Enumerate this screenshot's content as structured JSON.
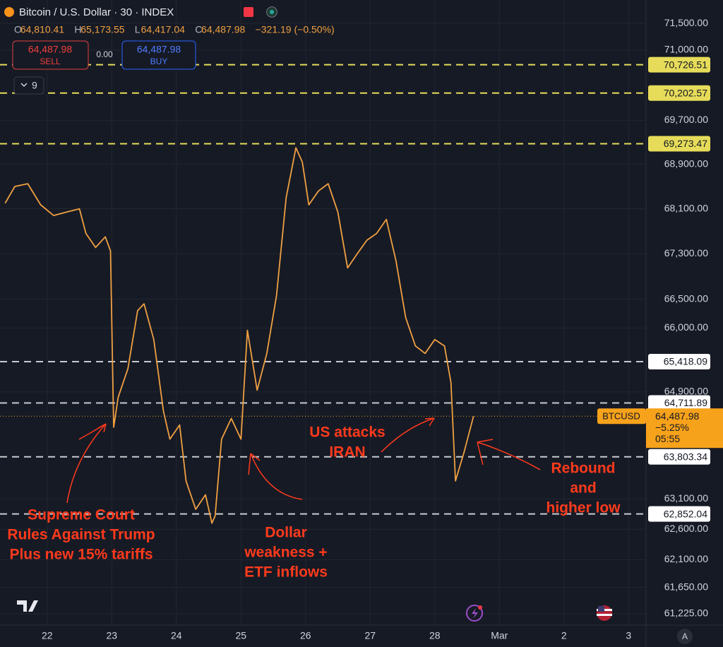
{
  "chart_data": {
    "type": "line",
    "title": "Bitcoin / U.S. Dollar · 30 · INDEX",
    "ohlc": [
      {
        "key": "O",
        "value": "64,810.41"
      },
      {
        "key": "H",
        "value": "65,173.55"
      },
      {
        "key": "L",
        "value": "64,417.04"
      },
      {
        "key": "C",
        "value": "64,487.98"
      }
    ],
    "change": "−321.19 (−0.50%)",
    "trade": {
      "sell_price": "64,487.98",
      "sell": "SELL",
      "spread": "0.00",
      "buy_price": "64,487.98",
      "buy": "BUY"
    },
    "indicators": "9",
    "x": [
      21.35,
      21.5,
      21.7,
      21.9,
      22.1,
      22.3,
      22.5,
      22.6,
      22.75,
      22.9,
      22.98,
      23.03,
      23.1,
      23.25,
      23.4,
      23.5,
      23.65,
      23.8,
      23.9,
      24.05,
      24.15,
      24.3,
      24.45,
      24.55,
      24.6,
      24.7,
      24.85,
      25.0,
      25.1,
      25.25,
      25.4,
      25.55,
      25.7,
      25.85,
      25.95,
      26.05,
      26.2,
      26.35,
      26.5,
      26.65,
      26.8,
      26.95,
      27.1,
      27.25,
      27.4,
      27.55,
      27.7,
      27.85,
      28.0,
      28.15,
      28.25,
      28.32,
      28.45,
      28.6
    ],
    "series": [
      {
        "color": "#f0a042",
        "values": [
          68200,
          68500,
          68550,
          68170,
          67980,
          68040,
          68100,
          67660,
          67410,
          67600,
          67350,
          64300,
          64810,
          65300,
          66300,
          66420,
          65800,
          64570,
          64100,
          64340,
          63400,
          62930,
          63170,
          62700,
          62820,
          64100,
          64450,
          64100,
          65960,
          64930,
          65560,
          66560,
          68300,
          69200,
          68940,
          68170,
          68420,
          68550,
          68040,
          67050,
          67300,
          67540,
          67660,
          67910,
          67170,
          66180,
          65690,
          65560,
          65800,
          65690,
          65060,
          63400,
          63870,
          64487.98
        ]
      }
    ],
    "xlim": [
      21.27,
      31.27
    ],
    "xticks": [
      22,
      23,
      24,
      25,
      26,
      27,
      28,
      {
        "value": 29,
        "label": "Mar"
      },
      {
        "value": 30,
        "label": "2"
      },
      {
        "value": 31,
        "label": "3"
      }
    ],
    "ylim": [
      61043,
      71940
    ],
    "log_scale": true,
    "grid": true,
    "yticks": [
      {
        "value": 71500,
        "label": "71,500.00"
      },
      {
        "value": 71000,
        "label": "71,000.00"
      },
      {
        "value": 69700,
        "label": "69,700.00"
      },
      {
        "value": 68900,
        "label": "68,900.00"
      },
      {
        "value": 68100,
        "label": "68,100.00"
      },
      {
        "value": 67300,
        "label": "67,300.00"
      },
      {
        "value": 66500,
        "label": "66,500.00"
      },
      {
        "value": 66000,
        "label": "66,000.00"
      },
      {
        "value": 64900,
        "label": "64,900.00"
      },
      {
        "value": 63100,
        "label": "63,100.00"
      },
      {
        "value": 62600,
        "label": "62,600.00"
      },
      {
        "value": 62100,
        "label": "62,100.00"
      },
      {
        "value": 61650,
        "label": "61,650.00"
      },
      {
        "value": 61225,
        "label": "61,225.00"
      }
    ],
    "levels": [
      {
        "value": 70726.51,
        "label": "70,726.51",
        "color": "#e6dc5a"
      },
      {
        "value": 70202.57,
        "label": "70,202.57",
        "color": "#e6dc5a"
      },
      {
        "value": 69273.47,
        "label": "69,273.47",
        "color": "#e6dc5a"
      },
      {
        "value": 65418.09,
        "label": "65,418.09",
        "color": "#ffffff"
      },
      {
        "value": 64711.89,
        "label": "64,711.89",
        "color": "#ffffff"
      },
      {
        "value": 63803.34,
        "label": "63,803.34",
        "color": "#ffffff"
      },
      {
        "value": 62852.04,
        "label": "62,852.04",
        "color": "#ffffff"
      }
    ],
    "price_line": {
      "value": 64487.98,
      "label": "64,487.98",
      "name": "BTCUSD",
      "change": "−5.25%",
      "countdown": "05:55",
      "color": "#f7a21b"
    },
    "annotations": [
      {
        "lines": [
          "Supreme Court",
          "Rules Against Trump",
          "Plus new 15% tariffs"
        ]
      },
      {
        "lines": [
          "Dollar",
          "weakness +",
          "ETF inflows"
        ]
      },
      {
        "lines": [
          "US attacks",
          "IRAN"
        ]
      },
      {
        "lines": [
          "Rebound",
          "and",
          "higher low"
        ]
      }
    ]
  }
}
